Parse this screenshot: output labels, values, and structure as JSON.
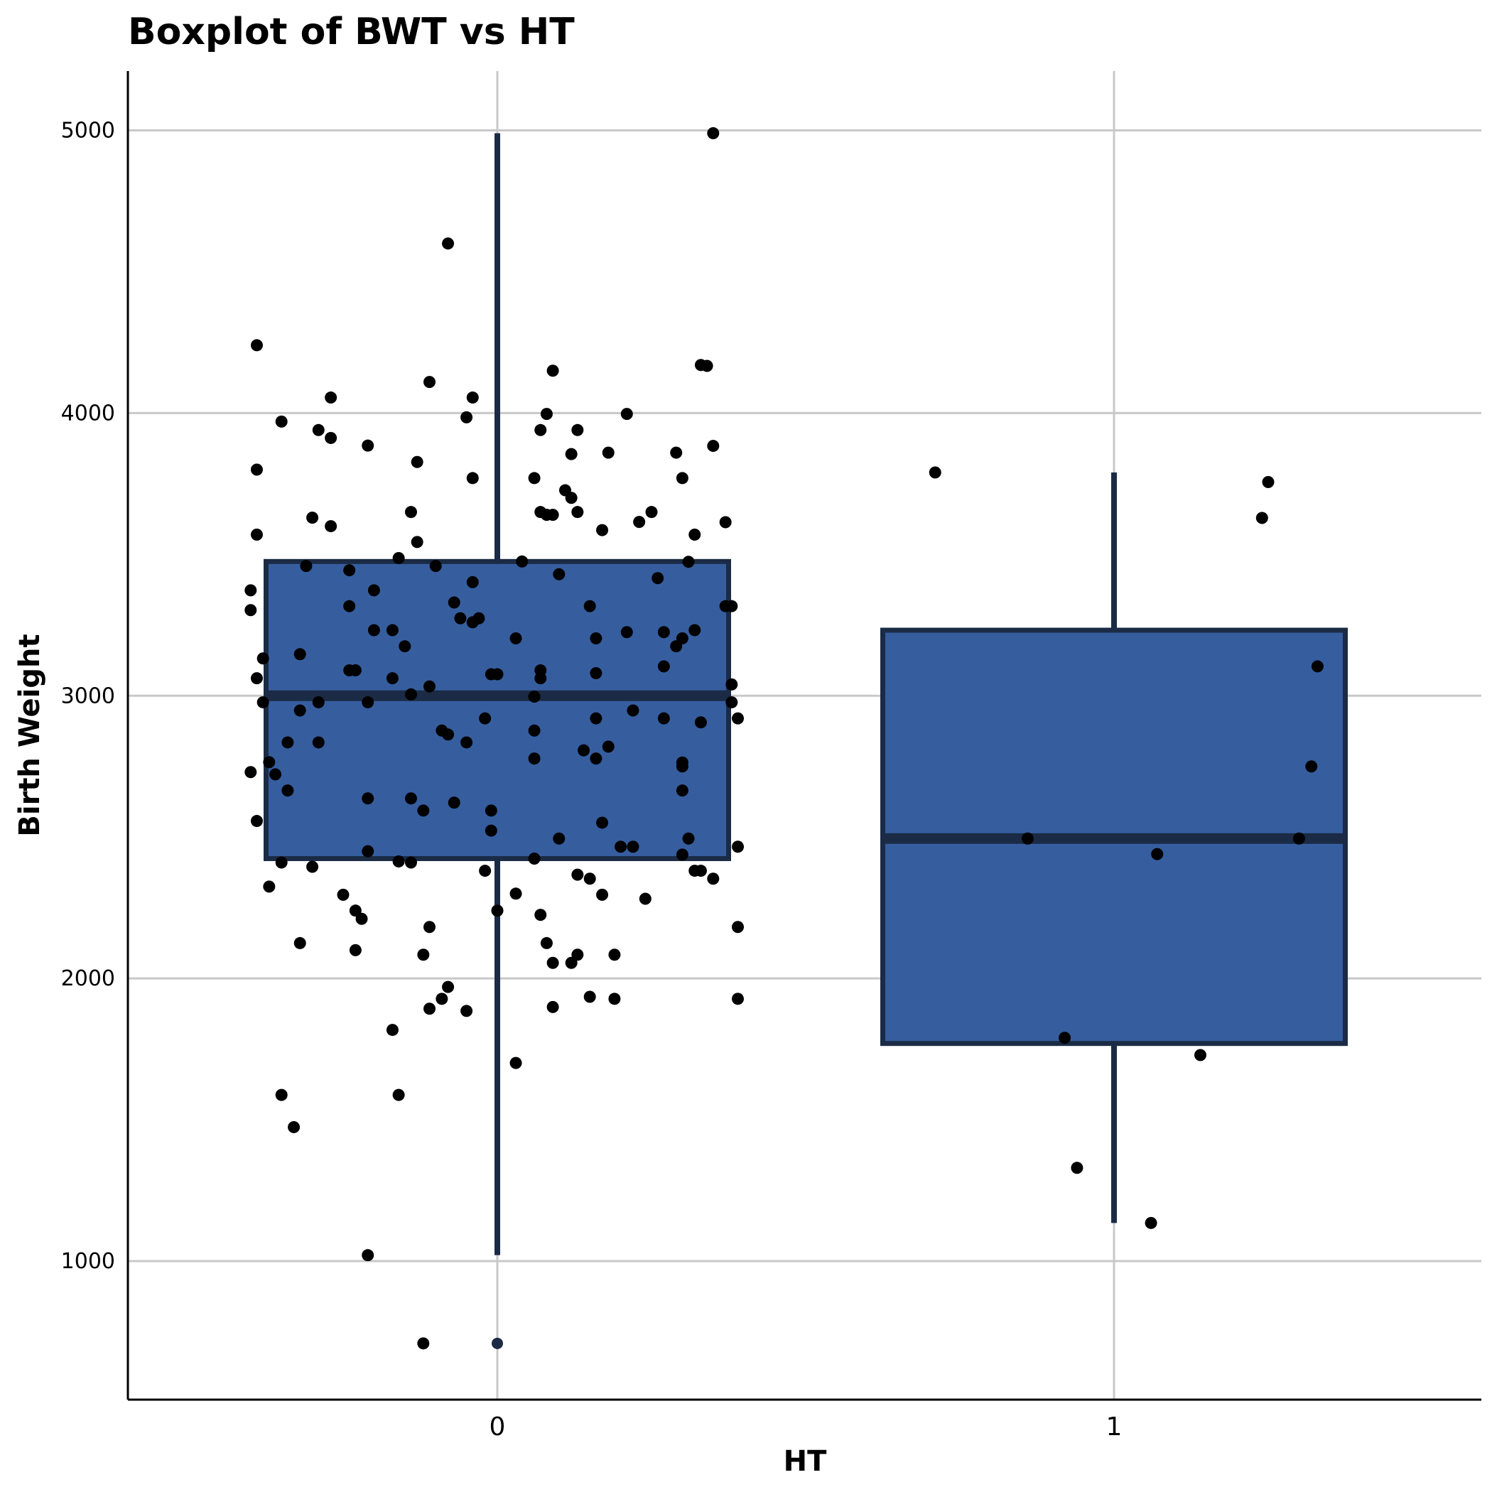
{
  "chart_data": {
    "type": "boxplot",
    "title": "Boxplot of BWT vs  HT",
    "xlabel": "HT",
    "ylabel": "Birth Weight",
    "categories": [
      "0",
      "1"
    ],
    "yticks": [
      "1000",
      "2000",
      "3000",
      "4000",
      "5000"
    ],
    "ylim": [
      510,
      5210
    ],
    "grid": true,
    "legend": "none",
    "box_fill": "#365e9f",
    "box_stroke": "#1b2b45",
    "point_color": "#000000",
    "boxes": [
      {
        "category": "0",
        "whisker_low": 1021,
        "q1": 2424,
        "median": 3000,
        "q3": 3475,
        "whisker_high": 4990,
        "outliers": [
          709
        ]
      },
      {
        "category": "1",
        "whisker_low": 1135,
        "q1": 1770,
        "median": 2495,
        "q3": 3232,
        "whisker_high": 3790,
        "outliers": []
      }
    ],
    "jitter_points": [
      {
        "category": "0",
        "offset": -0.08,
        "y": 4600
      },
      {
        "category": "0",
        "offset": -0.39,
        "y": 4240
      },
      {
        "category": "0",
        "offset": 0.35,
        "y": 4990
      },
      {
        "category": "0",
        "offset": -0.27,
        "y": 4055
      },
      {
        "category": "0",
        "offset": -0.11,
        "y": 4110
      },
      {
        "category": "0",
        "offset": -0.04,
        "y": 4055
      },
      {
        "category": "0",
        "offset": 0.09,
        "y": 4150
      },
      {
        "category": "0",
        "offset": 0.33,
        "y": 4170
      },
      {
        "category": "0",
        "offset": 0.34,
        "y": 4167
      },
      {
        "category": "0",
        "offset": -0.35,
        "y": 3970
      },
      {
        "category": "0",
        "offset": -0.29,
        "y": 3940
      },
      {
        "category": "0",
        "offset": -0.27,
        "y": 3912
      },
      {
        "category": "0",
        "offset": -0.05,
        "y": 3985
      },
      {
        "category": "0",
        "offset": 0.08,
        "y": 3997
      },
      {
        "category": "0",
        "offset": 0.07,
        "y": 3940
      },
      {
        "category": "0",
        "offset": 0.13,
        "y": 3940
      },
      {
        "category": "0",
        "offset": 0.21,
        "y": 3997
      },
      {
        "category": "0",
        "offset": -0.21,
        "y": 3885
      },
      {
        "category": "0",
        "offset": 0.12,
        "y": 3855
      },
      {
        "category": "0",
        "offset": 0.18,
        "y": 3860
      },
      {
        "category": "0",
        "offset": 0.29,
        "y": 3860
      },
      {
        "category": "0",
        "offset": 0.35,
        "y": 3884
      },
      {
        "category": "0",
        "offset": -0.39,
        "y": 3800
      },
      {
        "category": "0",
        "offset": -0.13,
        "y": 3827
      },
      {
        "category": "0",
        "offset": -0.04,
        "y": 3770
      },
      {
        "category": "0",
        "offset": 0.06,
        "y": 3770
      },
      {
        "category": "0",
        "offset": 0.3,
        "y": 3770
      },
      {
        "category": "0",
        "offset": 0.11,
        "y": 3727
      },
      {
        "category": "0",
        "offset": 0.12,
        "y": 3700
      },
      {
        "category": "0",
        "offset": -0.14,
        "y": 3650
      },
      {
        "category": "0",
        "offset": 0.07,
        "y": 3650
      },
      {
        "category": "0",
        "offset": 0.08,
        "y": 3640
      },
      {
        "category": "0",
        "offset": 0.09,
        "y": 3640
      },
      {
        "category": "0",
        "offset": 0.13,
        "y": 3650
      },
      {
        "category": "0",
        "offset": 0.25,
        "y": 3650
      },
      {
        "category": "0",
        "offset": -0.3,
        "y": 3630
      },
      {
        "category": "0",
        "offset": -0.27,
        "y": 3600
      },
      {
        "category": "0",
        "offset": 0.23,
        "y": 3615
      },
      {
        "category": "0",
        "offset": 0.37,
        "y": 3614
      },
      {
        "category": "0",
        "offset": -0.39,
        "y": 3570
      },
      {
        "category": "0",
        "offset": -0.13,
        "y": 3544
      },
      {
        "category": "0",
        "offset": 0.17,
        "y": 3586
      },
      {
        "category": "0",
        "offset": 0.32,
        "y": 3570
      },
      {
        "category": "0",
        "offset": -0.16,
        "y": 3487
      },
      {
        "category": "0",
        "offset": 0.04,
        "y": 3475
      },
      {
        "category": "0",
        "offset": 0.31,
        "y": 3474
      },
      {
        "category": "0",
        "offset": -0.31,
        "y": 3459
      },
      {
        "category": "0",
        "offset": -0.24,
        "y": 3444
      },
      {
        "category": "0",
        "offset": -0.1,
        "y": 3459
      },
      {
        "category": "0",
        "offset": 0.1,
        "y": 3430
      },
      {
        "category": "0",
        "offset": 0.26,
        "y": 3416
      },
      {
        "category": "0",
        "offset": -0.04,
        "y": 3402
      },
      {
        "category": "0",
        "offset": -0.4,
        "y": 3373
      },
      {
        "category": "0",
        "offset": -0.2,
        "y": 3373
      },
      {
        "category": "0",
        "offset": -0.24,
        "y": 3317
      },
      {
        "category": "0",
        "offset": -0.07,
        "y": 3330
      },
      {
        "category": "0",
        "offset": 0.15,
        "y": 3317
      },
      {
        "category": "0",
        "offset": 0.37,
        "y": 3317
      },
      {
        "category": "0",
        "offset": 0.38,
        "y": 3317
      },
      {
        "category": "0",
        "offset": -0.4,
        "y": 3303
      },
      {
        "category": "0",
        "offset": -0.06,
        "y": 3274
      },
      {
        "category": "0",
        "offset": -0.04,
        "y": 3260
      },
      {
        "category": "0",
        "offset": -0.03,
        "y": 3274
      },
      {
        "category": "0",
        "offset": -0.2,
        "y": 3232
      },
      {
        "category": "0",
        "offset": -0.17,
        "y": 3232
      },
      {
        "category": "0",
        "offset": 0.21,
        "y": 3225
      },
      {
        "category": "0",
        "offset": 0.27,
        "y": 3225
      },
      {
        "category": "0",
        "offset": 0.32,
        "y": 3232
      },
      {
        "category": "0",
        "offset": 0.03,
        "y": 3203
      },
      {
        "category": "0",
        "offset": 0.16,
        "y": 3203
      },
      {
        "category": "0",
        "offset": 0.3,
        "y": 3203
      },
      {
        "category": "0",
        "offset": -0.15,
        "y": 3175
      },
      {
        "category": "0",
        "offset": 0.29,
        "y": 3175
      },
      {
        "category": "0",
        "offset": -0.38,
        "y": 3132
      },
      {
        "category": "0",
        "offset": -0.32,
        "y": 3147
      },
      {
        "category": "0",
        "offset": 0.27,
        "y": 3104
      },
      {
        "category": "0",
        "offset": -0.24,
        "y": 3090
      },
      {
        "category": "0",
        "offset": -0.23,
        "y": 3090
      },
      {
        "category": "0",
        "offset": -0.01,
        "y": 3076
      },
      {
        "category": "0",
        "offset": 0.0,
        "y": 3076
      },
      {
        "category": "0",
        "offset": 0.07,
        "y": 3090
      },
      {
        "category": "0",
        "offset": 0.07,
        "y": 3062
      },
      {
        "category": "0",
        "offset": 0.16,
        "y": 3080
      },
      {
        "category": "0",
        "offset": -0.39,
        "y": 3062
      },
      {
        "category": "0",
        "offset": -0.17,
        "y": 3062
      },
      {
        "category": "0",
        "offset": 0.38,
        "y": 3040
      },
      {
        "category": "0",
        "offset": -0.11,
        "y": 3033
      },
      {
        "category": "0",
        "offset": -0.14,
        "y": 3005
      },
      {
        "category": "0",
        "offset": 0.06,
        "y": 2997
      },
      {
        "category": "0",
        "offset": -0.38,
        "y": 2977
      },
      {
        "category": "0",
        "offset": -0.29,
        "y": 2977
      },
      {
        "category": "0",
        "offset": -0.21,
        "y": 2977
      },
      {
        "category": "0",
        "offset": 0.38,
        "y": 2977
      },
      {
        "category": "0",
        "offset": -0.32,
        "y": 2948
      },
      {
        "category": "0",
        "offset": 0.22,
        "y": 2948
      },
      {
        "category": "0",
        "offset": -0.02,
        "y": 2920
      },
      {
        "category": "0",
        "offset": 0.16,
        "y": 2920
      },
      {
        "category": "0",
        "offset": 0.27,
        "y": 2920
      },
      {
        "category": "0",
        "offset": 0.33,
        "y": 2906
      },
      {
        "category": "0",
        "offset": 0.39,
        "y": 2920
      },
      {
        "category": "0",
        "offset": -0.09,
        "y": 2877
      },
      {
        "category": "0",
        "offset": -0.08,
        "y": 2863
      },
      {
        "category": "0",
        "offset": 0.06,
        "y": 2877
      },
      {
        "category": "0",
        "offset": -0.34,
        "y": 2835
      },
      {
        "category": "0",
        "offset": -0.29,
        "y": 2835
      },
      {
        "category": "0",
        "offset": -0.05,
        "y": 2835
      },
      {
        "category": "0",
        "offset": 0.14,
        "y": 2807
      },
      {
        "category": "0",
        "offset": 0.18,
        "y": 2820
      },
      {
        "category": "0",
        "offset": 0.06,
        "y": 2778
      },
      {
        "category": "0",
        "offset": 0.16,
        "y": 2778
      },
      {
        "category": "0",
        "offset": 0.3,
        "y": 2764
      },
      {
        "category": "0",
        "offset": 0.3,
        "y": 2750
      },
      {
        "category": "0",
        "offset": -0.4,
        "y": 2730
      },
      {
        "category": "0",
        "offset": -0.36,
        "y": 2722
      },
      {
        "category": "0",
        "offset": -0.37,
        "y": 2765
      },
      {
        "category": "0",
        "offset": -0.34,
        "y": 2665
      },
      {
        "category": "0",
        "offset": 0.3,
        "y": 2665
      },
      {
        "category": "0",
        "offset": -0.21,
        "y": 2637
      },
      {
        "category": "0",
        "offset": -0.14,
        "y": 2637
      },
      {
        "category": "0",
        "offset": -0.07,
        "y": 2622
      },
      {
        "category": "0",
        "offset": -0.01,
        "y": 2594
      },
      {
        "category": "0",
        "offset": -0.12,
        "y": 2594
      },
      {
        "category": "0",
        "offset": -0.39,
        "y": 2557
      },
      {
        "category": "0",
        "offset": 0.17,
        "y": 2551
      },
      {
        "category": "0",
        "offset": -0.01,
        "y": 2523
      },
      {
        "category": "0",
        "offset": 0.1,
        "y": 2495
      },
      {
        "category": "0",
        "offset": 0.31,
        "y": 2495
      },
      {
        "category": "0",
        "offset": 0.2,
        "y": 2466
      },
      {
        "category": "0",
        "offset": 0.22,
        "y": 2466
      },
      {
        "category": "0",
        "offset": 0.39,
        "y": 2466
      },
      {
        "category": "0",
        "offset": -0.21,
        "y": 2450
      },
      {
        "category": "0",
        "offset": 0.3,
        "y": 2438
      },
      {
        "category": "0",
        "offset": 0.06,
        "y": 2424
      },
      {
        "category": "0",
        "offset": -0.35,
        "y": 2410
      },
      {
        "category": "0",
        "offset": -0.16,
        "y": 2414
      },
      {
        "category": "0",
        "offset": -0.14,
        "y": 2410
      },
      {
        "category": "0",
        "offset": -0.3,
        "y": 2395
      },
      {
        "category": "0",
        "offset": -0.02,
        "y": 2381
      },
      {
        "category": "0",
        "offset": 0.32,
        "y": 2381
      },
      {
        "category": "0",
        "offset": 0.33,
        "y": 2381
      },
      {
        "category": "0",
        "offset": 0.13,
        "y": 2367
      },
      {
        "category": "0",
        "offset": 0.15,
        "y": 2353
      },
      {
        "category": "0",
        "offset": 0.35,
        "y": 2353
      },
      {
        "category": "0",
        "offset": -0.37,
        "y": 2325
      },
      {
        "category": "0",
        "offset": -0.25,
        "y": 2296
      },
      {
        "category": "0",
        "offset": 0.03,
        "y": 2300
      },
      {
        "category": "0",
        "offset": 0.17,
        "y": 2296
      },
      {
        "category": "0",
        "offset": 0.24,
        "y": 2282
      },
      {
        "category": "0",
        "offset": -0.23,
        "y": 2240
      },
      {
        "category": "0",
        "offset": 0.0,
        "y": 2240
      },
      {
        "category": "0",
        "offset": -0.22,
        "y": 2211
      },
      {
        "category": "0",
        "offset": 0.07,
        "y": 2225
      },
      {
        "category": "0",
        "offset": -0.11,
        "y": 2182
      },
      {
        "category": "0",
        "offset": 0.39,
        "y": 2182
      },
      {
        "category": "0",
        "offset": -0.32,
        "y": 2125
      },
      {
        "category": "0",
        "offset": 0.08,
        "y": 2125
      },
      {
        "category": "0",
        "offset": -0.23,
        "y": 2100
      },
      {
        "category": "0",
        "offset": -0.12,
        "y": 2084
      },
      {
        "category": "0",
        "offset": 0.13,
        "y": 2084
      },
      {
        "category": "0",
        "offset": 0.19,
        "y": 2084
      },
      {
        "category": "0",
        "offset": 0.09,
        "y": 2055
      },
      {
        "category": "0",
        "offset": 0.12,
        "y": 2055
      },
      {
        "category": "0",
        "offset": -0.08,
        "y": 1970
      },
      {
        "category": "0",
        "offset": 0.15,
        "y": 1935
      },
      {
        "category": "0",
        "offset": 0.19,
        "y": 1928
      },
      {
        "category": "0",
        "offset": 0.39,
        "y": 1928
      },
      {
        "category": "0",
        "offset": -0.09,
        "y": 1928
      },
      {
        "category": "0",
        "offset": -0.11,
        "y": 1893
      },
      {
        "category": "0",
        "offset": -0.05,
        "y": 1885
      },
      {
        "category": "0",
        "offset": 0.09,
        "y": 1899
      },
      {
        "category": "0",
        "offset": -0.17,
        "y": 1818
      },
      {
        "category": "0",
        "offset": 0.03,
        "y": 1701
      },
      {
        "category": "0",
        "offset": -0.35,
        "y": 1588
      },
      {
        "category": "0",
        "offset": -0.16,
        "y": 1588
      },
      {
        "category": "0",
        "offset": -0.33,
        "y": 1474
      },
      {
        "category": "0",
        "offset": -0.21,
        "y": 1021
      },
      {
        "category": "0",
        "offset": -0.12,
        "y": 709
      },
      {
        "category": "1",
        "offset": -0.29,
        "y": 3790
      },
      {
        "category": "1",
        "offset": 0.25,
        "y": 3756
      },
      {
        "category": "1",
        "offset": 0.24,
        "y": 3629
      },
      {
        "category": "1",
        "offset": 0.33,
        "y": 3104
      },
      {
        "category": "1",
        "offset": 0.32,
        "y": 2750
      },
      {
        "category": "1",
        "offset": -0.14,
        "y": 2495
      },
      {
        "category": "1",
        "offset": 0.3,
        "y": 2495
      },
      {
        "category": "1",
        "offset": 0.07,
        "y": 2440
      },
      {
        "category": "1",
        "offset": -0.08,
        "y": 1790
      },
      {
        "category": "1",
        "offset": 0.14,
        "y": 1729
      },
      {
        "category": "1",
        "offset": -0.06,
        "y": 1330
      },
      {
        "category": "1",
        "offset": 0.06,
        "y": 1135
      }
    ]
  }
}
